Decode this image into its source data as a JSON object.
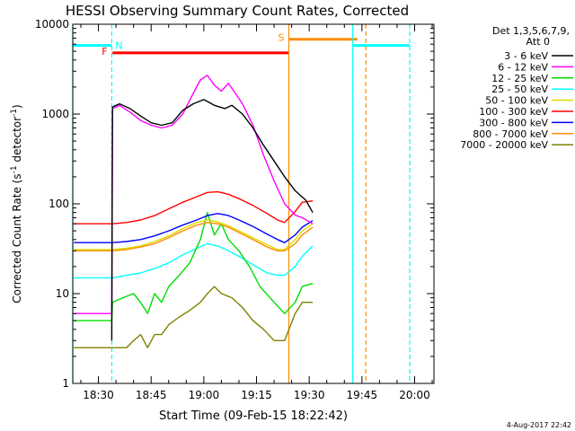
{
  "chart_data": {
    "type": "line",
    "title": "HESSI Observing Summary Count Rates, Corrected",
    "xlabel": "Start Time (09-Feb-15 18:22:42)",
    "ylabel_parts": [
      "Corrected Count Rate (s",
      "-1",
      " detector",
      "-1",
      ")"
    ],
    "y_scale": "log",
    "ylim": [
      1,
      10000
    ],
    "y_ticks": [
      {
        "value": 1,
        "label": "1"
      },
      {
        "value": 10,
        "label": "10"
      },
      {
        "value": 100,
        "label": "100"
      },
      {
        "value": 1000,
        "label": "1000"
      },
      {
        "value": 10000,
        "label": "10000"
      }
    ],
    "xlim_minutes": [
      1102.7,
      1205.5
    ],
    "x_ticks": [
      {
        "value": 1110,
        "label": "18:30"
      },
      {
        "value": 1125,
        "label": "18:45"
      },
      {
        "value": 1140,
        "label": "19:00"
      },
      {
        "value": 1155,
        "label": "19:15"
      },
      {
        "value": 1170,
        "label": "19:30"
      },
      {
        "value": 1185,
        "label": "19:45"
      },
      {
        "value": 1200,
        "label": "20:00"
      }
    ],
    "detector_label_line1": "Det 1,3,5,6,7,9,",
    "detector_label_line2": "Att 0",
    "legend": [
      {
        "name": "3 - 6 keV",
        "color": "#000000"
      },
      {
        "name": "6 - 12 keV",
        "color": "#ff00ff"
      },
      {
        "name": "12 - 25 keV",
        "color": "#00dd00"
      },
      {
        "name": "25 - 50 keV",
        "color": "#00ffff"
      },
      {
        "name": "50 - 100 keV",
        "color": "#dddd00"
      },
      {
        "name": "100 - 300 keV",
        "color": "#ff0000"
      },
      {
        "name": "300 - 800 keV",
        "color": "#0000ff"
      },
      {
        "name": "800 - 7000 keV",
        "color": "#ff8c00"
      },
      {
        "name": "7000 - 20000 keV",
        "color": "#808000"
      }
    ],
    "series": [
      {
        "name": "3 - 6 keV",
        "x": [
          1113.8,
          1114.0,
          1116,
          1119,
          1122,
          1125,
          1128,
          1131,
          1134,
          1137,
          1140,
          1143,
          1146,
          1148,
          1151,
          1154,
          1157,
          1160,
          1163,
          1166,
          1169,
          1171
        ],
        "y": [
          3,
          1200,
          1300,
          1150,
          950,
          800,
          750,
          800,
          1100,
          1300,
          1450,
          1250,
          1150,
          1250,
          1000,
          700,
          450,
          300,
          200,
          140,
          110,
          80
        ]
      },
      {
        "name": "6 - 12 keV",
        "x": [
          1103,
          1113.8,
          1114.0,
          1116,
          1119,
          1122,
          1125,
          1128,
          1131,
          1134,
          1137,
          1139,
          1141,
          1143,
          1145,
          1147,
          1149,
          1151,
          1154,
          1157,
          1160,
          1163,
          1166,
          1168,
          1171
        ],
        "y": [
          6,
          6,
          1150,
          1250,
          1050,
          850,
          750,
          700,
          750,
          1000,
          1700,
          2400,
          2700,
          2100,
          1800,
          2200,
          1700,
          1300,
          750,
          350,
          180,
          100,
          75,
          70,
          60
        ]
      },
      {
        "name": "12 - 25 keV",
        "x": [
          1103,
          1113.8,
          1114.0,
          1117,
          1120,
          1122,
          1124,
          1126,
          1128,
          1130,
          1133,
          1136,
          1139,
          1141,
          1143,
          1145,
          1147,
          1150,
          1153,
          1156,
          1160,
          1163,
          1166,
          1168,
          1171
        ],
        "y": [
          5,
          5,
          8,
          9,
          10,
          8,
          6,
          10,
          8,
          12,
          16,
          22,
          40,
          80,
          45,
          60,
          40,
          30,
          20,
          12,
          8,
          6,
          8,
          12,
          13
        ]
      },
      {
        "name": "25 - 50 keV",
        "x": [
          1103,
          1114,
          1118,
          1122,
          1126,
          1130,
          1134,
          1138,
          1141,
          1144,
          1147,
          1150,
          1154,
          1158,
          1161,
          1163,
          1166,
          1168,
          1171
        ],
        "y": [
          15,
          15,
          16,
          17,
          19,
          22,
          27,
          32,
          36,
          34,
          30,
          26,
          21,
          17,
          16,
          16,
          20,
          26,
          34
        ]
      },
      {
        "name": "50 - 100 keV",
        "x": [
          1103,
          1114,
          1118,
          1122,
          1126,
          1130,
          1134,
          1138,
          1141,
          1144,
          1147,
          1150,
          1154,
          1158,
          1161,
          1163,
          1166,
          1168,
          1171
        ],
        "y": [
          31,
          31,
          32,
          34,
          38,
          44,
          53,
          62,
          66,
          63,
          57,
          50,
          42,
          35,
          31,
          31,
          40,
          50,
          60
        ]
      },
      {
        "name": "100 - 300 keV",
        "x": [
          1103,
          1114,
          1118,
          1122,
          1126,
          1130,
          1134,
          1138,
          1141,
          1144,
          1147,
          1150,
          1154,
          1158,
          1161,
          1163,
          1166,
          1168,
          1171
        ],
        "y": [
          60,
          60,
          62,
          66,
          74,
          88,
          104,
          120,
          134,
          136,
          128,
          114,
          96,
          78,
          66,
          62,
          82,
          104,
          108
        ]
      },
      {
        "name": "300 - 800 keV",
        "x": [
          1103,
          1114,
          1118,
          1122,
          1126,
          1130,
          1134,
          1138,
          1141,
          1144,
          1147,
          1150,
          1154,
          1158,
          1161,
          1163,
          1166,
          1168,
          1171
        ],
        "y": [
          37,
          37,
          38,
          40,
          44,
          50,
          58,
          66,
          74,
          78,
          74,
          66,
          56,
          46,
          40,
          37,
          45,
          55,
          65
        ]
      },
      {
        "name": "800 - 7000 keV",
        "x": [
          1103,
          1114,
          1118,
          1122,
          1126,
          1130,
          1134,
          1138,
          1141,
          1144,
          1147,
          1150,
          1154,
          1158,
          1161,
          1163,
          1166,
          1168,
          1171
        ],
        "y": [
          30,
          30,
          31,
          33,
          36,
          42,
          50,
          58,
          62,
          60,
          55,
          48,
          40,
          33,
          30,
          30,
          36,
          45,
          55
        ]
      },
      {
        "name": "7000 - 20000 keV",
        "x": [
          1103,
          1114,
          1116,
          1118,
          1120,
          1122,
          1124,
          1126,
          1128,
          1130,
          1133,
          1136,
          1139,
          1141,
          1143,
          1145,
          1148,
          1151,
          1154,
          1157,
          1160,
          1163,
          1166,
          1168,
          1171
        ],
        "y": [
          2.5,
          2.5,
          2.5,
          2.5,
          3,
          3.5,
          2.5,
          3.5,
          3.5,
          4.5,
          5.5,
          6.5,
          8,
          10,
          12,
          10,
          9,
          7,
          5,
          4,
          3,
          3,
          6,
          8,
          8
        ]
      }
    ],
    "overlays": [
      {
        "label": "F",
        "color": "#ff0000",
        "x": [
          1114.0,
          1164.2
        ],
        "y": 4800
      },
      {
        "label": "S",
        "color": "#ff8c00",
        "x": [
          1164.2,
          1183.7
        ],
        "y": 6800
      },
      {
        "label": "N",
        "color": "#00ffff",
        "x": [
          1102.7,
          1113.8
        ],
        "y": 5800
      },
      {
        "label": "",
        "color": "#00ffff",
        "x": [
          1182.4,
          1198.6
        ],
        "y": 5800
      }
    ],
    "vlines": [
      {
        "x": 1102.7,
        "color": "#00ffff",
        "style": "solid"
      },
      {
        "x": 1113.8,
        "color": "#00ffff",
        "style": "dashed"
      },
      {
        "x": 1182.4,
        "color": "#00ffff",
        "style": "solid"
      },
      {
        "x": 1198.6,
        "color": "#00ffff",
        "style": "dashed"
      },
      {
        "x": 1164.2,
        "color": "#ff8c00",
        "style": "solid"
      },
      {
        "x": 1186.1,
        "color": "#ff8c00",
        "style": "dashed"
      }
    ]
  },
  "footer_date": "4-Aug-2017 22:42"
}
